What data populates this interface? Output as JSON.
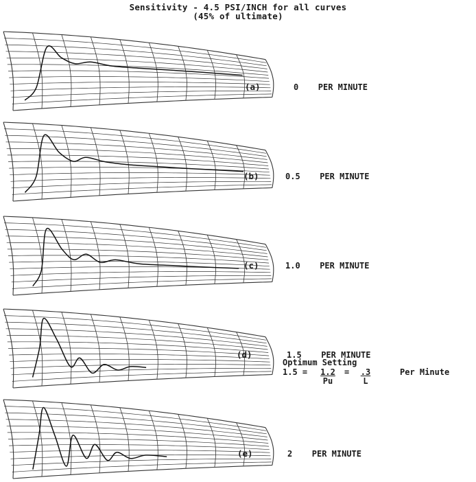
{
  "figure": {
    "title_line1": "Sensitivity - 4.5 PSI/INCH for all curves",
    "title_line2": "(45% of ultimate)"
  },
  "panels": [
    {
      "letter": "(a)",
      "rate": "0",
      "unit": "PER MINUTE",
      "trace": [
        [
          0.05,
          0.12
        ],
        [
          0.1,
          0.28
        ],
        [
          0.16,
          0.82
        ],
        [
          0.21,
          0.68
        ],
        [
          0.26,
          0.6
        ],
        [
          0.32,
          0.63
        ],
        [
          0.4,
          0.58
        ],
        [
          0.5,
          0.56
        ],
        [
          0.62,
          0.55
        ],
        [
          0.75,
          0.54
        ],
        [
          0.9,
          0.53
        ]
      ]
    },
    {
      "letter": "(b)",
      "rate": "0.5",
      "unit": "PER MINUTE",
      "trace": [
        [
          0.05,
          0.1
        ],
        [
          0.1,
          0.3
        ],
        [
          0.15,
          0.85
        ],
        [
          0.2,
          0.62
        ],
        [
          0.25,
          0.5
        ],
        [
          0.3,
          0.56
        ],
        [
          0.37,
          0.5
        ],
        [
          0.46,
          0.46
        ],
        [
          0.56,
          0.44
        ],
        [
          0.68,
          0.42
        ],
        [
          0.8,
          0.41
        ],
        [
          0.9,
          0.4
        ]
      ]
    },
    {
      "letter": "(c)",
      "rate": "1.0",
      "unit": "PER MINUTE",
      "trace": [
        [
          0.08,
          0.1
        ],
        [
          0.12,
          0.3
        ],
        [
          0.16,
          0.86
        ],
        [
          0.21,
          0.58
        ],
        [
          0.25,
          0.44
        ],
        [
          0.3,
          0.52
        ],
        [
          0.35,
          0.4
        ],
        [
          0.41,
          0.44
        ],
        [
          0.5,
          0.38
        ],
        [
          0.62,
          0.36
        ],
        [
          0.75,
          0.34
        ],
        [
          0.88,
          0.33
        ]
      ]
    },
    {
      "letter": "(d)",
      "rate": "1.5",
      "unit": "PER MINUTE",
      "trace": [
        [
          0.08,
          0.12
        ],
        [
          0.12,
          0.5
        ],
        [
          0.15,
          0.9
        ],
        [
          0.19,
          0.62
        ],
        [
          0.23,
          0.24
        ],
        [
          0.27,
          0.36
        ],
        [
          0.31,
          0.14
        ],
        [
          0.36,
          0.26
        ],
        [
          0.41,
          0.17
        ],
        [
          0.46,
          0.22
        ],
        [
          0.52,
          0.2
        ]
      ]
    },
    {
      "letter": "(e)",
      "rate": "2",
      "unit": "PER MINUTE",
      "trace": [
        [
          0.08,
          0.1
        ],
        [
          0.12,
          0.55
        ],
        [
          0.15,
          0.92
        ],
        [
          0.18,
          0.55
        ],
        [
          0.21,
          0.12
        ],
        [
          0.25,
          0.55
        ],
        [
          0.29,
          0.22
        ],
        [
          0.33,
          0.42
        ],
        [
          0.37,
          0.18
        ],
        [
          0.41,
          0.3
        ],
        [
          0.46,
          0.2
        ],
        [
          0.52,
          0.25
        ],
        [
          0.6,
          0.22
        ]
      ]
    }
  ],
  "optimum": {
    "label": "Optimum Setting",
    "lhs": "1.5 =",
    "frac1_num": "1.2",
    "frac1_den": "Pu",
    "eq": "=",
    "frac2_num": ".3",
    "frac2_den": "L",
    "units": "Per Minute"
  }
}
